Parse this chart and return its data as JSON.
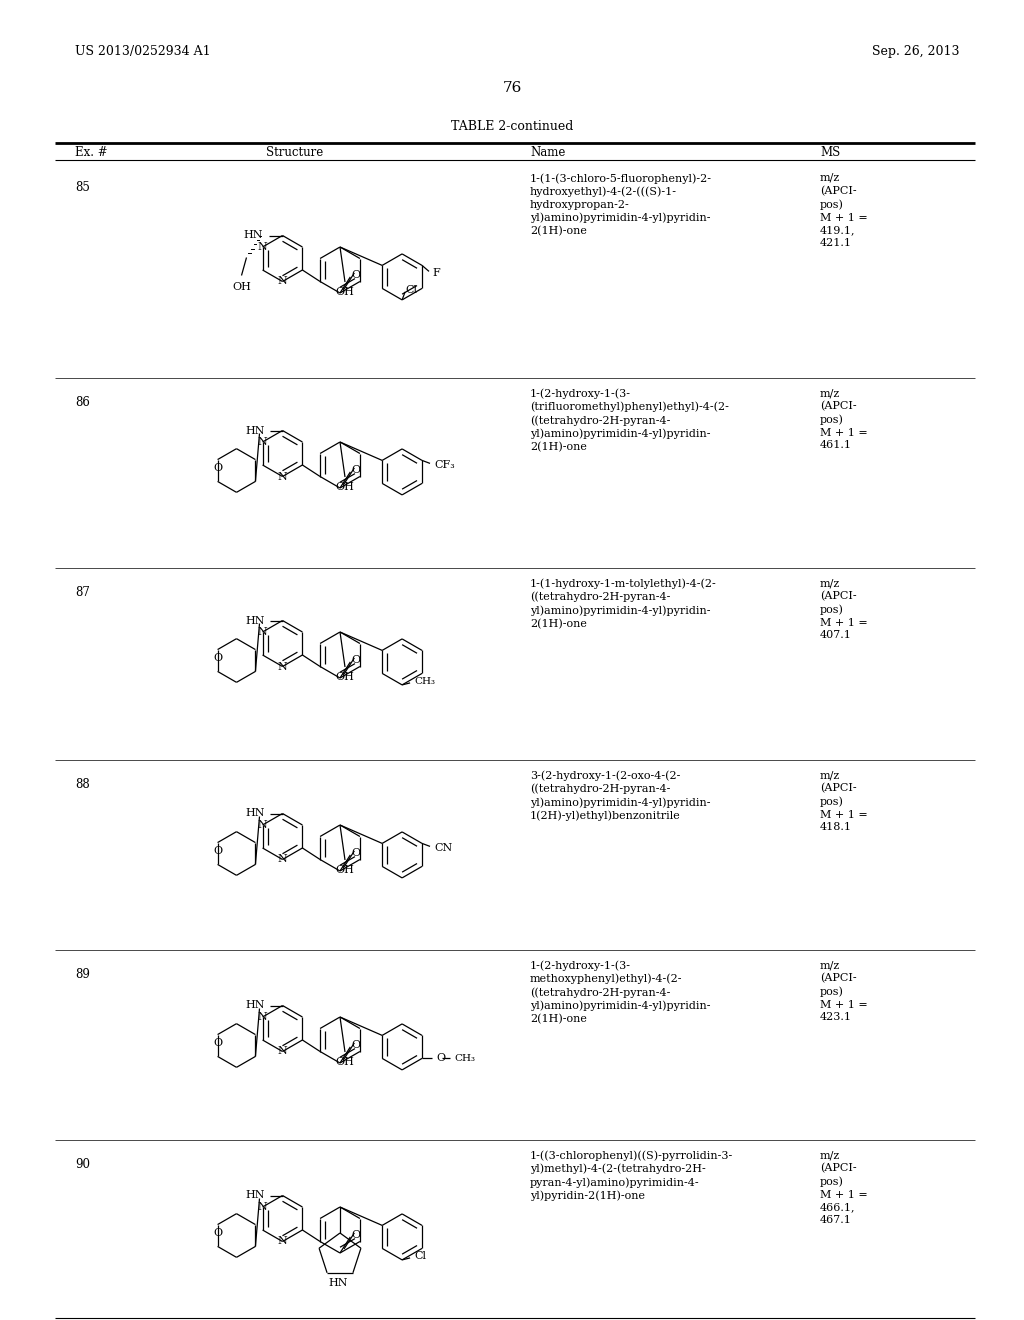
{
  "page_header_left": "US 2013/0252934 A1",
  "page_header_right": "Sep. 26, 2013",
  "page_number": "76",
  "table_title": "TABLE 2-continued",
  "col_ex": "Ex. #",
  "col_struct": "Structure",
  "col_name": "Name",
  "col_ms": "MS",
  "background_color": "#ffffff",
  "rows": [
    {
      "ex": "85",
      "name": "1-(1-(3-chloro-5-fluorophenyl)-2-\nhydroxyethyl)-4-(2-(((S)-1-\nhydroxypropan-2-\nyl)amino)pyrimidin-4-yl)pyridin-\n2(1H)-one",
      "ms": "m/z\n(APCI-\npos)\nM + 1 =\n419.1,\n421.1"
    },
    {
      "ex": "86",
      "name": "1-(2-hydroxy-1-(3-\n(trifluoromethyl)phenyl)ethyl)-4-(2-\n((tetrahydro-2H-pyran-4-\nyl)amino)pyrimidin-4-yl)pyridin-\n2(1H)-one",
      "ms": "m/z\n(APCI-\npos)\nM + 1 =\n461.1"
    },
    {
      "ex": "87",
      "name": "1-(1-hydroxy-1-m-tolylethyl)-4-(2-\n((tetrahydro-2H-pyran-4-\nyl)amino)pyrimidin-4-yl)pyridin-\n2(1H)-one",
      "ms": "m/z\n(APCI-\npos)\nM + 1 =\n407.1"
    },
    {
      "ex": "88",
      "name": "3-(2-hydroxy-1-(2-oxo-4-(2-\n((tetrahydro-2H-pyran-4-\nyl)amino)pyrimidin-4-yl)pyridin-\n1(2H)-yl)ethyl)benzonitrile",
      "ms": "m/z\n(APCI-\npos)\nM + 1 =\n418.1"
    },
    {
      "ex": "89",
      "name": "1-(2-hydroxy-1-(3-\nmethoxyphenyl)ethyl)-4-(2-\n((tetrahydro-2H-pyran-4-\nyl)amino)pyrimidin-4-yl)pyridin-\n2(1H)-one",
      "ms": "m/z\n(APCI-\npos)\nM + 1 =\n423.1"
    },
    {
      "ex": "90",
      "name": "1-((3-chlorophenyl)((S)-pyrrolidin-3-\nyl)methyl)-4-(2-(tetrahydro-2H-\npyran-4-yl)amino)pyrimidin-4-\nyl)pyridin-2(1H)-one",
      "ms": "m/z\n(APCI-\npos)\nM + 1 =\n466.1,\n467.1"
    }
  ]
}
